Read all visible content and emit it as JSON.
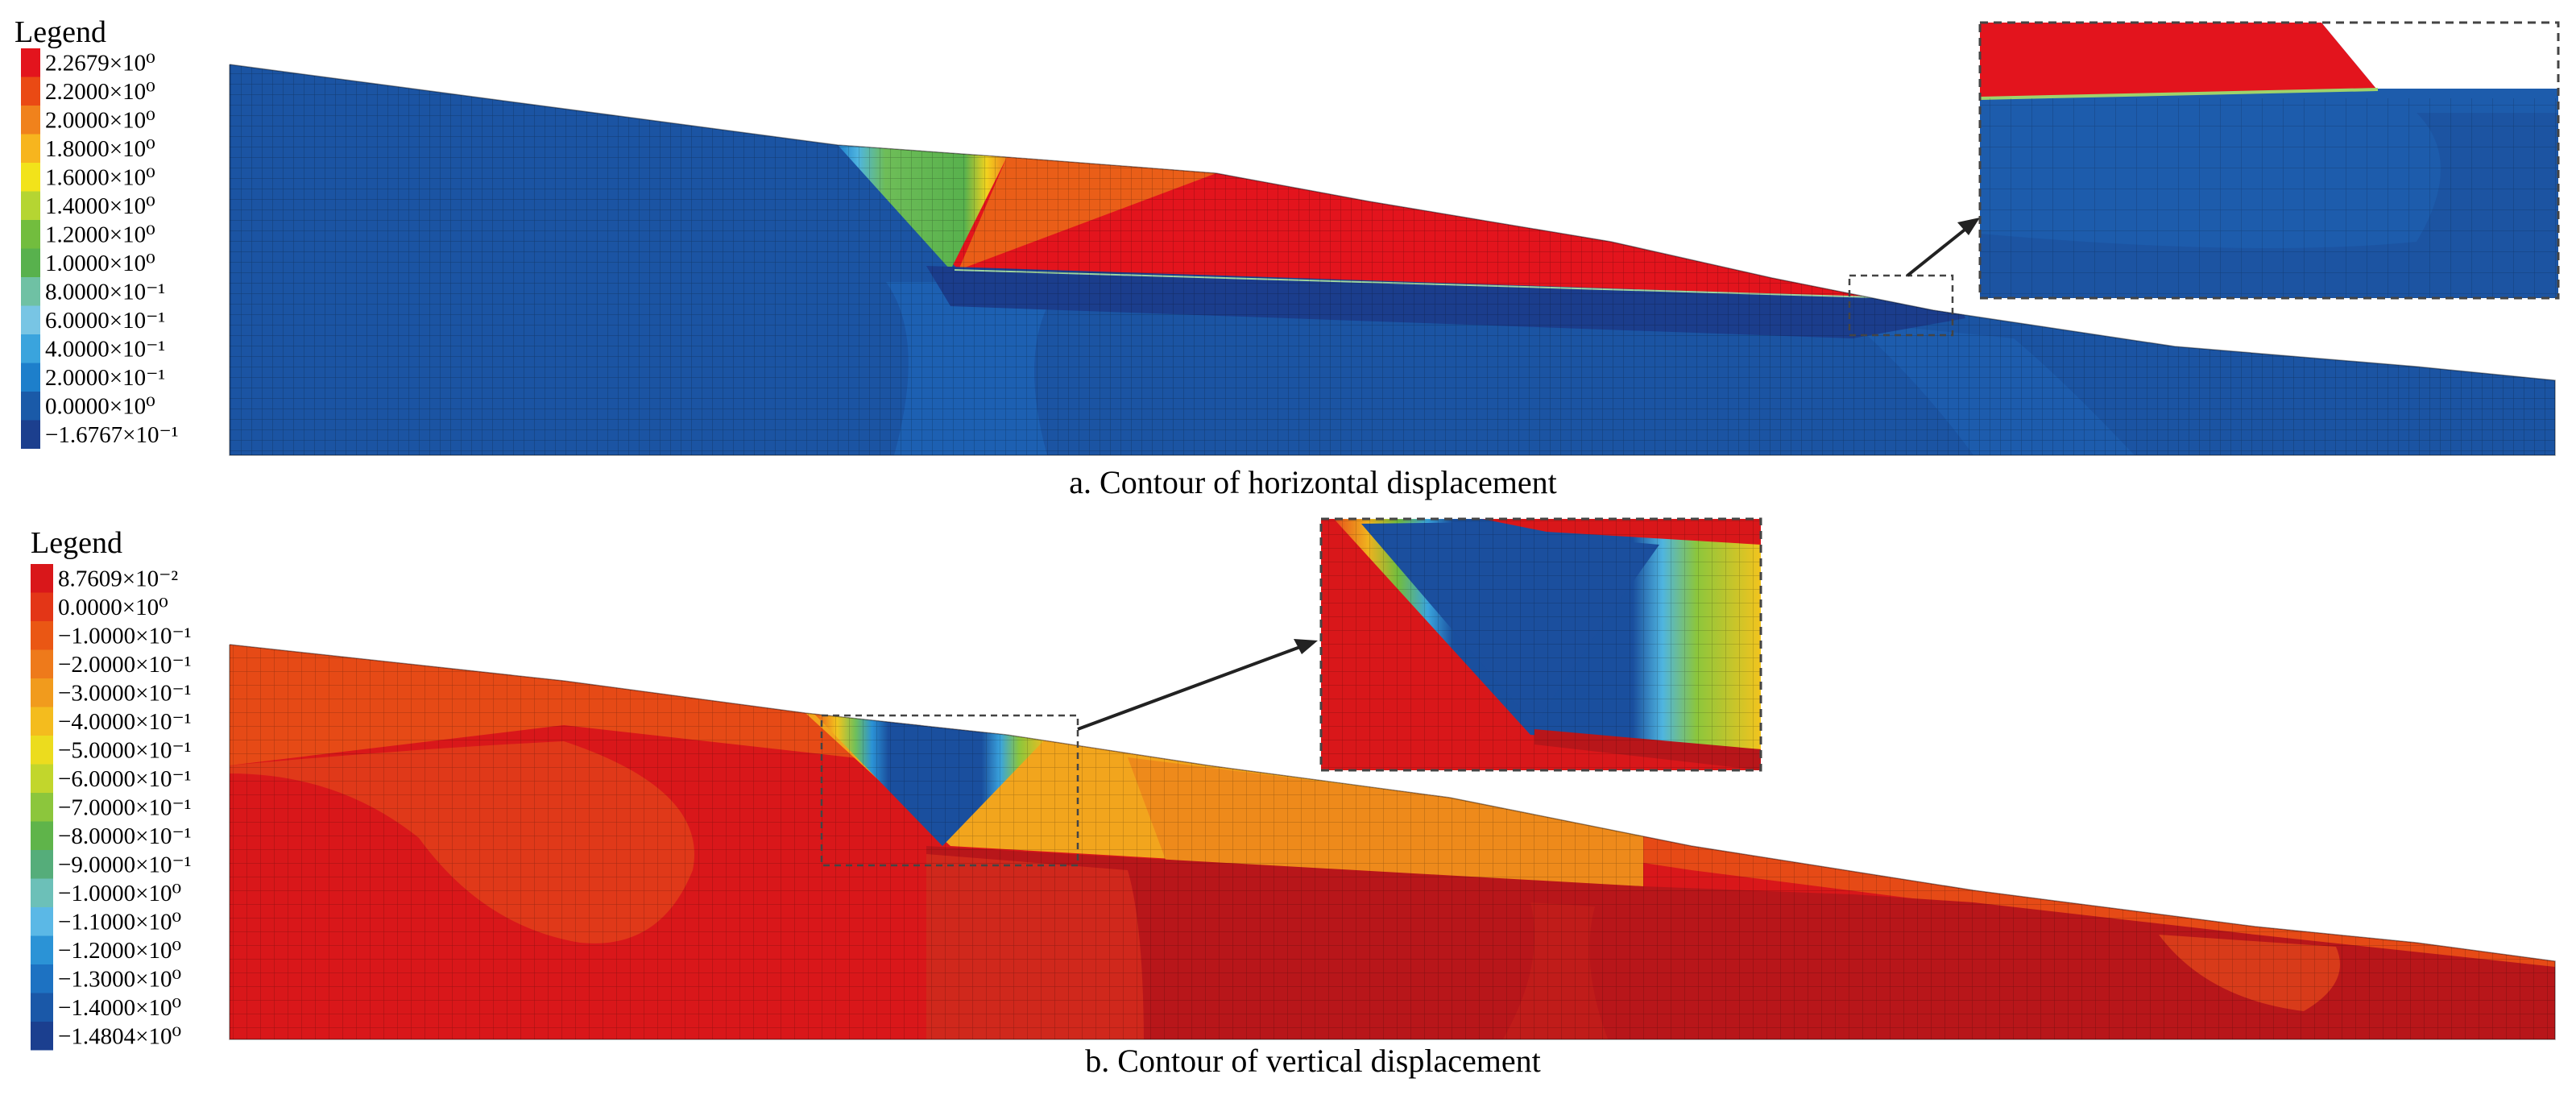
{
  "panel_a": {
    "legend": {
      "title": "Legend",
      "entries": [
        {
          "label": "2.2679×10⁰",
          "color": "#e3141d"
        },
        {
          "label": "2.2000×10⁰",
          "color": "#ea4a14"
        },
        {
          "label": "2.0000×10⁰",
          "color": "#f0821c"
        },
        {
          "label": "1.8000×10⁰",
          "color": "#f7b51e"
        },
        {
          "label": "1.6000×10⁰",
          "color": "#f2e31a"
        },
        {
          "label": "1.4000×10⁰",
          "color": "#b5d532"
        },
        {
          "label": "1.2000×10⁰",
          "color": "#72bd3e"
        },
        {
          "label": "1.0000×10⁰",
          "color": "#58b14d"
        },
        {
          "label": "8.0000×10⁻¹",
          "color": "#6fc1a4"
        },
        {
          "label": "6.0000×10⁻¹",
          "color": "#78c5e4"
        },
        {
          "label": "4.0000×10⁻¹",
          "color": "#3aa4dd"
        },
        {
          "label": "2.0000×10⁻¹",
          "color": "#1d7fcb"
        },
        {
          "label": "0.0000×10⁰",
          "color": "#1a5aa8"
        },
        {
          "label": "−1.6767×10⁻¹",
          "color": "#1c3f8e"
        }
      ]
    },
    "caption": "a. Contour of horizontal displacement"
  },
  "panel_b": {
    "legend": {
      "title": "Legend",
      "entries": [
        {
          "label": "8.7609×10⁻²",
          "color": "#d9171a"
        },
        {
          "label": "0.0000×10⁰",
          "color": "#e33617"
        },
        {
          "label": "−1.0000×10⁻¹",
          "color": "#ea5714"
        },
        {
          "label": "−2.0000×10⁻¹",
          "color": "#ee7a1b"
        },
        {
          "label": "−3.0000×10⁻¹",
          "color": "#f19b1d"
        },
        {
          "label": "−4.0000×10⁻¹",
          "color": "#f4bc1e"
        },
        {
          "label": "−5.0000×10⁻¹",
          "color": "#ecdc1e"
        },
        {
          "label": "−6.0000×10⁻¹",
          "color": "#c2d62c"
        },
        {
          "label": "−7.0000×10⁻¹",
          "color": "#8cc63c"
        },
        {
          "label": "−8.0000×10⁻¹",
          "color": "#5fb44a"
        },
        {
          "label": "−9.0000×10⁻¹",
          "color": "#55ad7a"
        },
        {
          "label": "−1.0000×10⁰",
          "color": "#6cc0b8"
        },
        {
          "label": "−1.1000×10⁰",
          "color": "#5bb8e6"
        },
        {
          "label": "−1.2000×10⁰",
          "color": "#2b93d6"
        },
        {
          "label": "−1.3000×10⁰",
          "color": "#1d72c2"
        },
        {
          "label": "−1.4000×10⁰",
          "color": "#1a58a8"
        },
        {
          "label": "−1.4804×10⁰",
          "color": "#1b3f8f"
        }
      ]
    },
    "caption": "b. Contour of vertical displacement"
  }
}
